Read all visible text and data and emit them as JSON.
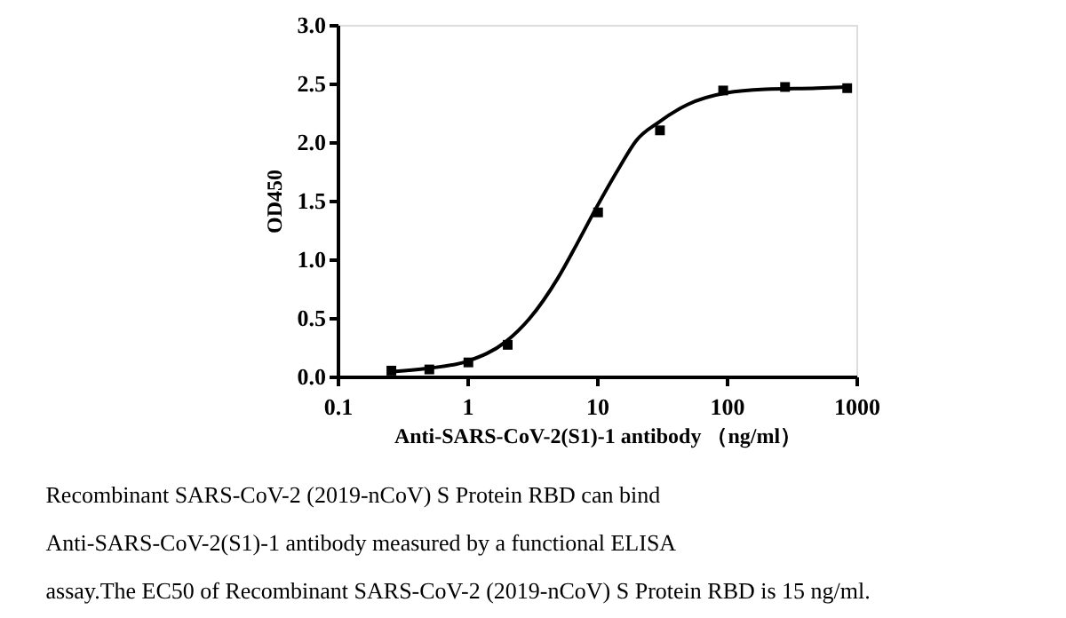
{
  "chart_data": {
    "type": "scatter",
    "xlabel": "Anti-SARS-CoV-2(S1)-1 antibody （ng/ml）",
    "ylabel": "OD450",
    "log": "x",
    "xlim": [
      0.1,
      1000
    ],
    "xticks": [
      0.1,
      1,
      10,
      100,
      1000
    ],
    "ylim": [
      0,
      3.0
    ],
    "yticks": [
      {
        "value": 0,
        "label": "0.0"
      },
      0.5,
      {
        "value": 1,
        "label": "1.0"
      },
      1.5,
      {
        "value": 2,
        "label": "2.0"
      },
      2.5,
      {
        "value": 3,
        "label": "3.0"
      }
    ],
    "grid": false,
    "series": [
      {
        "marker": "square",
        "color": "#000000",
        "x": [
          0.26,
          0.51,
          1.02,
          2.05,
          10.2,
          30.6,
          94,
          282,
          850
        ],
        "values": [
          0.05,
          0.06,
          0.12,
          0.27,
          1.4,
          2.1,
          2.44,
          2.47,
          2.46
        ]
      },
      {
        "type": "line",
        "line_style": "solid",
        "color": "#000000",
        "x": [
          0.25,
          0.5,
          1,
          2,
          3,
          5,
          7,
          10,
          15,
          20,
          30,
          50,
          100,
          200,
          500,
          850
        ],
        "values": [
          0.04,
          0.07,
          0.13,
          0.3,
          0.49,
          0.84,
          1.13,
          1.45,
          1.79,
          2.01,
          2.17,
          2.32,
          2.42,
          2.45,
          2.46,
          2.47
        ]
      }
    ],
    "annotations": [
      "  Recombinant SARS-CoV-2 (2019-nCoV) S Protein RBD   can bind",
      "Anti-SARS-CoV-2(S1)-1 antibody  measured by a functional ELISA",
      "assay.The EC50 of  Recombinant SARS-CoV-2 (2019-nCoV) S Protein RBD is 15 ng/ml."
    ]
  }
}
